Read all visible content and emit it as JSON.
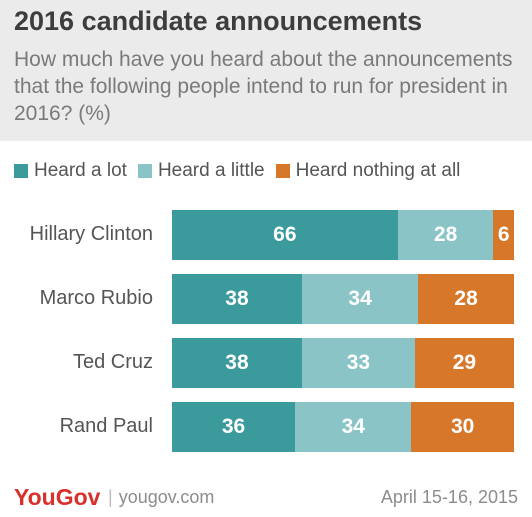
{
  "title": "2016 candidate announcements",
  "subtitle": "How much have you heard about the announcements that the following people intend to run for president in 2016? (%)",
  "colors": {
    "heard_a_lot": "#3b9a9c",
    "heard_a_little": "#8bc4c6",
    "heard_nothing": "#d6772a",
    "header_bg": "#ebebeb"
  },
  "chart_data": {
    "type": "bar",
    "orientation": "horizontal",
    "stacked": true,
    "categories": [
      "Hillary Clinton",
      "Marco Rubio",
      "Ted Cruz",
      "Rand Paul"
    ],
    "series": [
      {
        "name": "Heard a lot",
        "values": [
          66,
          38,
          38,
          36
        ],
        "color": "#3b9a9c"
      },
      {
        "name": "Heard a little",
        "values": [
          28,
          34,
          33,
          34
        ],
        "color": "#8bc4c6"
      },
      {
        "name": "Heard nothing at all",
        "values": [
          6,
          28,
          29,
          30
        ],
        "color": "#d6772a"
      }
    ],
    "legend_position": "top",
    "grid": false
  },
  "footer": {
    "brand": "YouGov",
    "site": "yougov.com",
    "date": "April 15-16, 2015"
  }
}
